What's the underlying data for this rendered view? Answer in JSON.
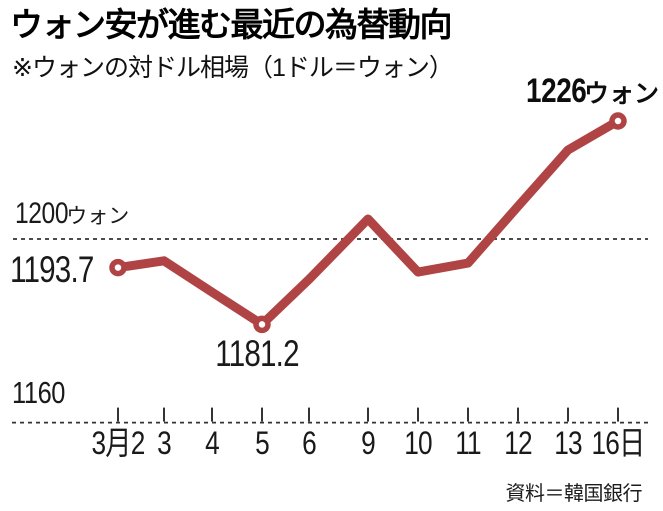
{
  "header": {
    "title": "ウォン安が進む最近の為替動向",
    "subtitle": "※ウォンの対ドル相場（1ドル＝ウォン）"
  },
  "source": "資料＝韓国銀行",
  "chart_data": {
    "type": "line",
    "series_name": "ウォンの対ドル相場",
    "unit": "ウォン",
    "categories": [
      "3月2",
      "3",
      "4",
      "5",
      "6",
      "9",
      "10",
      "11",
      "12",
      "13",
      "16日"
    ],
    "values": [
      1193.7,
      1195.2,
      1188.3,
      1181.2,
      1191.1,
      1204.4,
      1192.7,
      1194.7,
      1207.2,
      1219.6,
      1226.0
    ],
    "ylim": [
      1160,
      1233
    ],
    "reference_line": 1200,
    "baseline": 1160,
    "grid": "dashed-reference-and-baseline",
    "legend_position": "none",
    "line_color": "#b04444",
    "marker_days": [
      "3月2",
      "5",
      "16日"
    ],
    "annotations": {
      "end_value": "1226",
      "end_unit": "ウォン",
      "start_value": "1193.7",
      "min_value": "1181.2",
      "reference_value": "1200",
      "reference_unit": "ウォン",
      "baseline_value": "1160"
    }
  }
}
